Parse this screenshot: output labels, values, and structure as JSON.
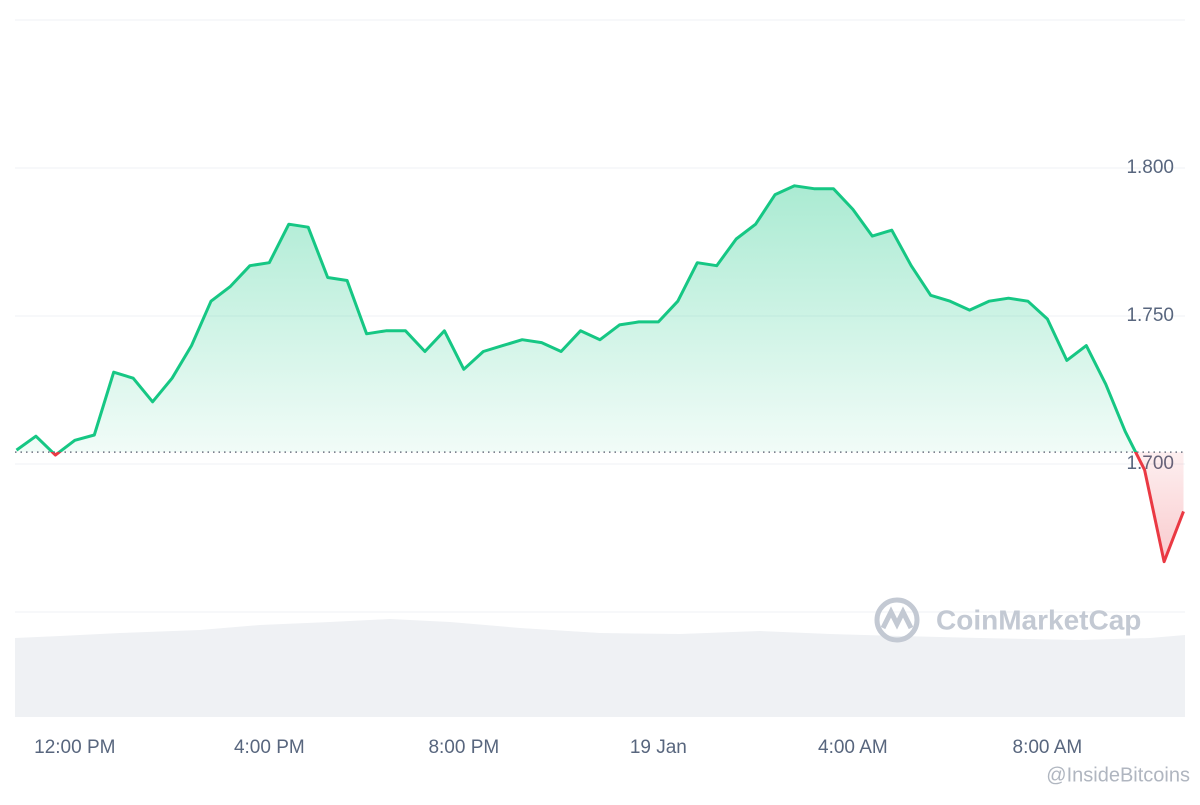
{
  "chart_data": {
    "type": "line",
    "x": [
      10.8,
      11.2,
      11.6,
      12.0,
      12.4,
      12.8,
      13.2,
      13.6,
      14.0,
      14.4,
      14.8,
      15.2,
      15.6,
      16.0,
      16.4,
      16.8,
      17.2,
      17.6,
      18.0,
      18.4,
      18.8,
      19.2,
      19.6,
      20.0,
      20.4,
      20.8,
      21.2,
      21.6,
      22.0,
      22.4,
      22.8,
      23.2,
      23.6,
      24.0,
      24.4,
      24.8,
      25.2,
      25.6,
      26.0,
      26.4,
      26.8,
      27.2,
      27.6,
      28.0,
      28.4,
      28.8,
      29.2,
      29.6,
      30.0,
      30.4,
      30.8,
      31.2,
      31.6,
      32.0,
      32.4,
      32.8,
      33.2,
      33.6,
      34.0,
      34.4,
      34.8
    ],
    "series": [
      {
        "color": "#16c784",
        "values": [
          1.7047,
          1.7094,
          1.703,
          1.708,
          1.7098,
          1.731,
          1.729,
          1.721,
          1.729,
          1.74,
          1.755,
          1.76,
          1.767,
          1.768,
          1.781,
          1.78,
          1.763,
          1.762,
          1.744,
          1.745,
          1.745,
          1.738,
          1.745,
          1.732,
          1.738,
          1.74,
          1.742,
          1.741,
          1.738,
          1.745,
          1.742,
          1.747,
          1.748,
          1.748,
          1.755,
          1.768,
          1.767,
          1.776,
          1.781,
          1.791,
          1.794,
          1.793,
          1.793,
          1.786,
          1.777,
          1.779,
          1.767,
          1.757,
          1.755,
          1.752,
          1.755,
          1.756,
          1.755,
          1.749,
          1.735,
          1.74,
          1.727,
          1.711,
          1.698,
          1.667,
          1.684
        ]
      }
    ],
    "down_color": "#ea3943",
    "baseline": 1.704,
    "xlim": [
      10.77,
      34.83
    ],
    "xticks": [
      {
        "value": 12,
        "label": "12:00 PM"
      },
      {
        "value": 16,
        "label": "4:00 PM"
      },
      {
        "value": 20,
        "label": "8:00 PM"
      },
      {
        "value": 24,
        "label": "19 Jan"
      },
      {
        "value": 28,
        "label": "4:00 AM"
      },
      {
        "value": 32,
        "label": "8:00 AM"
      }
    ],
    "ylim": [
      1.65,
      1.85
    ],
    "yticks": [
      {
        "value": 1.7,
        "label": "1.700"
      },
      {
        "value": 1.75,
        "label": "1.750"
      },
      {
        "value": 1.8,
        "label": "1.800"
      }
    ],
    "grid": true,
    "watermark": "CoinMarketCap",
    "credit": "@InsideBitcoins"
  }
}
